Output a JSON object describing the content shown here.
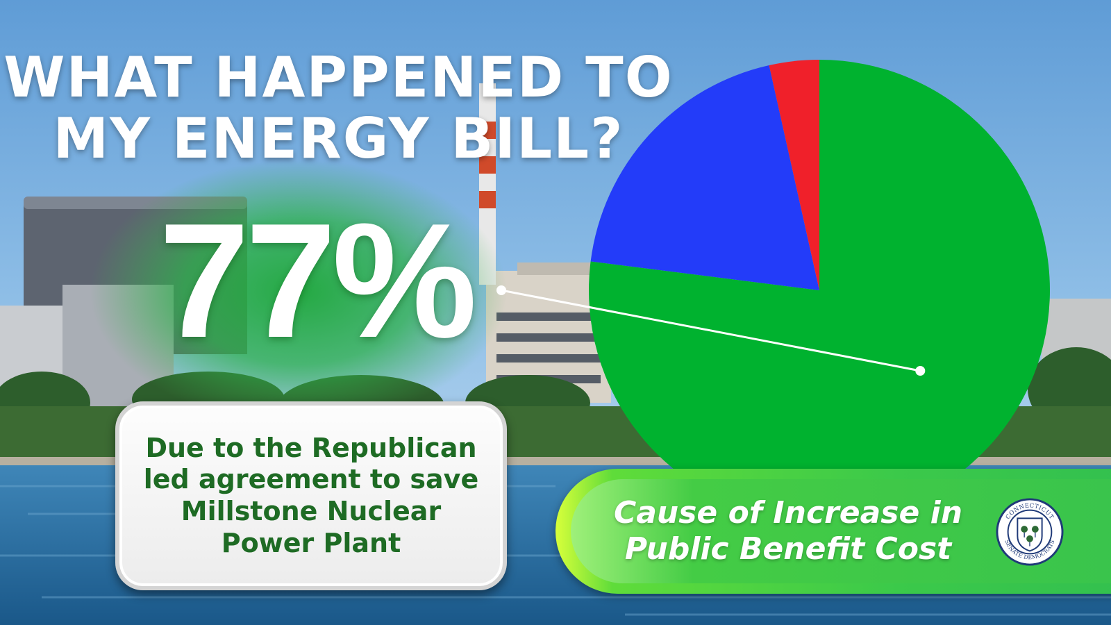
{
  "headline": {
    "line1": "WHAT HAPPENED TO",
    "line2": "MY ENERGY BILL?"
  },
  "highlight": {
    "value": "77%",
    "note": "Due to the Republican led agreement to save Millstone Nuclear Power Plant"
  },
  "caption": "Cause of Increase in Public Benefit Cost",
  "seal": {
    "top_text": "CONNECTICUT",
    "bottom_text": "SENATE DEMOCRATS"
  },
  "chart_data": {
    "type": "pie",
    "title": "",
    "slices": [
      {
        "value": 77,
        "color": "#00b22f"
      },
      {
        "value": 19.5,
        "color": "#233cf9"
      },
      {
        "value": 3.5,
        "color": "#f0202a"
      }
    ],
    "start_angle_deg": 0,
    "direction": "clockwise",
    "callout_slice_index": 0
  },
  "colors": {
    "sky_top": "#6aa5dc",
    "water": "#1f6aa0",
    "note_text": "#1e6b24",
    "caption_green": "#3bc94a"
  }
}
